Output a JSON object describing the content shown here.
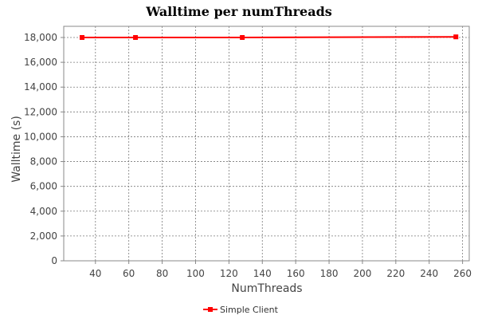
{
  "chart_data": {
    "type": "line",
    "title": "Walltime per numThreads",
    "xlabel": "NumThreads",
    "ylabel": "Walltime (s)",
    "xlim": [
      21,
      264
    ],
    "ylim": [
      0,
      18900
    ],
    "xticks": [
      40,
      60,
      80,
      100,
      120,
      140,
      160,
      180,
      200,
      220,
      240,
      260
    ],
    "xtick_labels": [
      "40",
      "60",
      "80",
      "100",
      "120",
      "140",
      "160",
      "180",
      "200",
      "220",
      "240",
      "260"
    ],
    "yticks": [
      0,
      2000,
      4000,
      6000,
      8000,
      10000,
      12000,
      14000,
      16000,
      18000
    ],
    "ytick_labels": [
      "0",
      "2,000",
      "4,000",
      "6,000",
      "8,000",
      "10,000",
      "12,000",
      "14,000",
      "16,000",
      "18,000"
    ],
    "grid": true,
    "legend_position": "bottom-center",
    "series": [
      {
        "name": "Simple Client",
        "color": "#ff0000",
        "marker": "square",
        "x": [
          32,
          64,
          128,
          256
        ],
        "y": [
          18000,
          18000,
          18000,
          18050
        ]
      }
    ]
  }
}
